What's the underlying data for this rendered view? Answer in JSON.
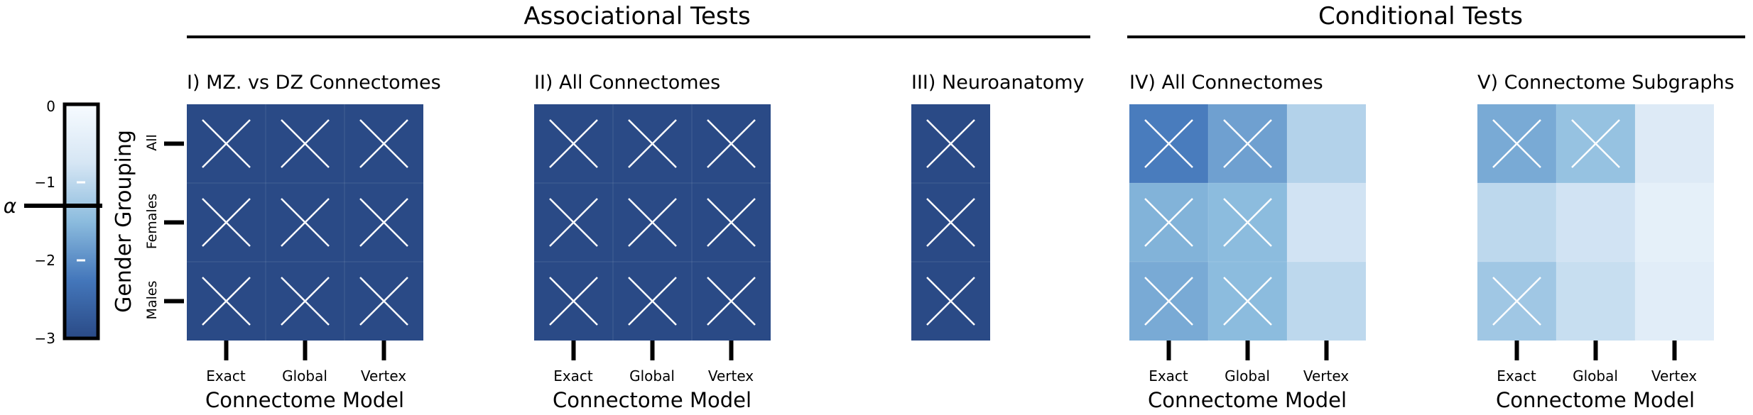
{
  "group_titles": {
    "associational": "Associational Tests",
    "conditional": "Conditional Tests"
  },
  "colorbar": {
    "symbol": "α",
    "ticks": [
      "0",
      "−1",
      "−2",
      "−3"
    ],
    "tick_values": [
      0,
      -1,
      -2,
      -3
    ],
    "range": [
      -3,
      0
    ],
    "alpha_level": -1.3,
    "colormap": "Blues (dark = low)"
  },
  "shared_labels": {
    "ylabel": "Gender Grouping",
    "rows": [
      "All",
      "Females",
      "Males"
    ],
    "xlabel": "Connectome Model",
    "cols": [
      "Exact",
      "Global",
      "Vertex"
    ]
  },
  "chart_data": [
    {
      "type": "heatmap",
      "title": "I) MZ. vs DZ Connectomes",
      "group": "Associational Tests",
      "rows": [
        "All",
        "Females",
        "Males"
      ],
      "cols": [
        "Exact",
        "Global",
        "Vertex"
      ],
      "xlabel": "Connectome Model",
      "ylabel": "Gender Grouping",
      "values": [
        [
          -3,
          -3,
          -3
        ],
        [
          -3,
          -3,
          -3
        ],
        [
          -3,
          -3,
          -3
        ]
      ],
      "significant": [
        [
          true,
          true,
          true
        ],
        [
          true,
          true,
          true
        ],
        [
          true,
          true,
          true
        ]
      ]
    },
    {
      "type": "heatmap",
      "title": "II) All Connectomes",
      "group": "Associational Tests",
      "rows": [
        "All",
        "Females",
        "Males"
      ],
      "cols": [
        "Exact",
        "Global",
        "Vertex"
      ],
      "xlabel": "Connectome Model",
      "values": [
        [
          -3,
          -3,
          -3
        ],
        [
          -3,
          -3,
          -3
        ],
        [
          -3,
          -3,
          -3
        ]
      ],
      "significant": [
        [
          true,
          true,
          true
        ],
        [
          true,
          true,
          true
        ],
        [
          true,
          true,
          true
        ]
      ]
    },
    {
      "type": "heatmap",
      "title": "III) Neuroanatomy",
      "group": "Associational Tests",
      "rows": [
        "All",
        "Females",
        "Males"
      ],
      "cols": [
        ""
      ],
      "values": [
        [
          -3
        ],
        [
          -3
        ],
        [
          -3
        ]
      ],
      "significant": [
        [
          true
        ],
        [
          true
        ],
        [
          true
        ]
      ]
    },
    {
      "type": "heatmap",
      "title": "IV) All Connectomes",
      "group": "Conditional Tests",
      "rows": [
        "All",
        "Females",
        "Males"
      ],
      "cols": [
        "Exact",
        "Global",
        "Vertex"
      ],
      "xlabel": "Connectome Model",
      "values": [
        [
          -2.2,
          -1.8,
          -1.1
        ],
        [
          -1.6,
          -1.5,
          -0.8
        ],
        [
          -1.7,
          -1.5,
          -1.0
        ]
      ],
      "significant": [
        [
          true,
          true,
          false
        ],
        [
          true,
          true,
          false
        ],
        [
          true,
          true,
          false
        ]
      ]
    },
    {
      "type": "heatmap",
      "title": "V) Connectome Subgraphs",
      "group": "Conditional Tests",
      "rows": [
        "All",
        "Females",
        "Males"
      ],
      "cols": [
        "Exact",
        "Global",
        "Vertex"
      ],
      "xlabel": "Connectome Model",
      "values": [
        [
          -1.7,
          -1.4,
          -0.6
        ],
        [
          -1.0,
          -0.8,
          -0.4
        ],
        [
          -1.3,
          -0.9,
          -0.5
        ]
      ],
      "significant": [
        [
          true,
          true,
          false
        ],
        [
          false,
          false,
          false
        ],
        [
          true,
          false,
          false
        ]
      ]
    }
  ]
}
